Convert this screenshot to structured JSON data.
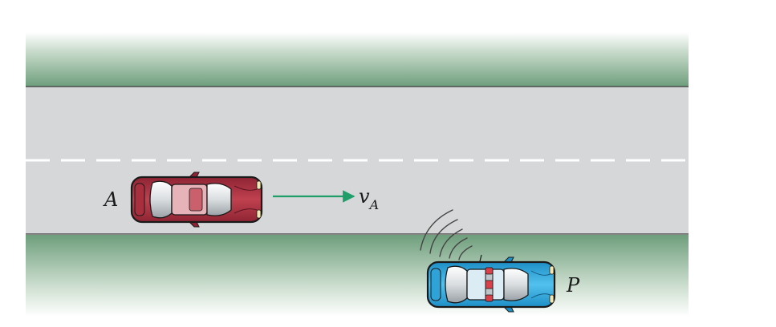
{
  "labels": {
    "car_a": "A",
    "velocity_main": "v",
    "velocity_sub": "A",
    "car_p": "P"
  },
  "colors": {
    "grass_dark": "#6e9e7c",
    "grass_light": "#ffffff",
    "road": "#d6d7d8",
    "lane_marking": "#ffffff",
    "road_edge": "#3a3a3a",
    "car_a_body": "#b53647",
    "car_a_roof": "#e6b3b8",
    "car_p_body": "#3fb2e4",
    "car_p_roof": "#dcecf5",
    "velocity_arrow": "#1f9e6a",
    "police_light": "#d8404a"
  },
  "icons": {
    "car_a": "red-sedan-icon",
    "car_p": "police-car-icon",
    "radar": "radar-waves-icon"
  }
}
